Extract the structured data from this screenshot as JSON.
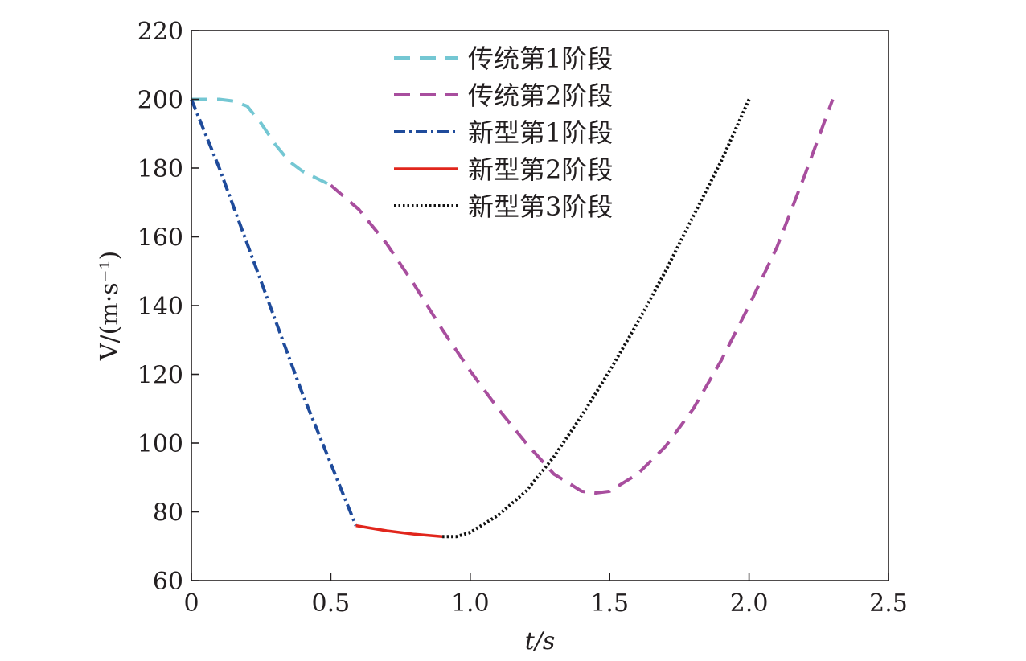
{
  "chart_data": {
    "type": "line",
    "xlabel": "t/s",
    "ylabel": "V/(m·s⁻¹)",
    "xlim": [
      0,
      2.5
    ],
    "ylim": [
      60,
      220
    ],
    "x_ticks": [
      0,
      0.5,
      1.0,
      1.5,
      2.0,
      2.5
    ],
    "x_tick_labels": [
      "0",
      "0.5",
      "1.0",
      "1.5",
      "2.0",
      "2.5"
    ],
    "y_ticks": [
      60,
      80,
      100,
      120,
      140,
      160,
      180,
      200,
      220
    ],
    "y_tick_labels": [
      "60",
      "80",
      "100",
      "120",
      "140",
      "160",
      "180",
      "200",
      "220"
    ],
    "grid": false,
    "legend_position": "top-center",
    "series": [
      {
        "name": "传统第1阶段",
        "color": "#74c7d3",
        "style": "dashed",
        "x": [
          0,
          0.05,
          0.1,
          0.15,
          0.2,
          0.25,
          0.3,
          0.35,
          0.4,
          0.45,
          0.5
        ],
        "y": [
          200,
          200,
          200,
          199.5,
          198,
          193,
          187,
          182,
          179,
          177,
          175
        ]
      },
      {
        "name": "传统第2阶段",
        "color": "#a84e9e",
        "style": "dashed",
        "x": [
          0.5,
          0.6,
          0.7,
          0.8,
          0.9,
          1.0,
          1.1,
          1.2,
          1.3,
          1.4,
          1.45,
          1.5,
          1.6,
          1.7,
          1.8,
          1.9,
          2.0,
          2.1,
          2.2,
          2.3
        ],
        "y": [
          175,
          168,
          158,
          146,
          133,
          121,
          110,
          100,
          91,
          86,
          85.5,
          86,
          91,
          99,
          110,
          124,
          140,
          157,
          178,
          200
        ]
      },
      {
        "name": "新型第1阶段",
        "color": "#1f4b9b",
        "style": "dashdot",
        "x": [
          0,
          0.1,
          0.2,
          0.3,
          0.4,
          0.5,
          0.59
        ],
        "y": [
          200,
          180,
          158,
          136,
          114,
          94,
          76
        ]
      },
      {
        "name": "新型第2阶段",
        "color": "#e1261c",
        "style": "solid",
        "x": [
          0.59,
          0.7,
          0.8,
          0.9
        ],
        "y": [
          76,
          74.5,
          73.5,
          72.8
        ]
      },
      {
        "name": "新型第3阶段",
        "color": "#111111",
        "style": "dotted",
        "x": [
          0.9,
          0.95,
          1.0,
          1.1,
          1.2,
          1.3,
          1.4,
          1.5,
          1.6,
          1.7,
          1.8,
          1.9,
          2.0
        ],
        "y": [
          72.8,
          72.8,
          74,
          79,
          86,
          96,
          108,
          121,
          135,
          150,
          166,
          182,
          200
        ]
      }
    ]
  }
}
